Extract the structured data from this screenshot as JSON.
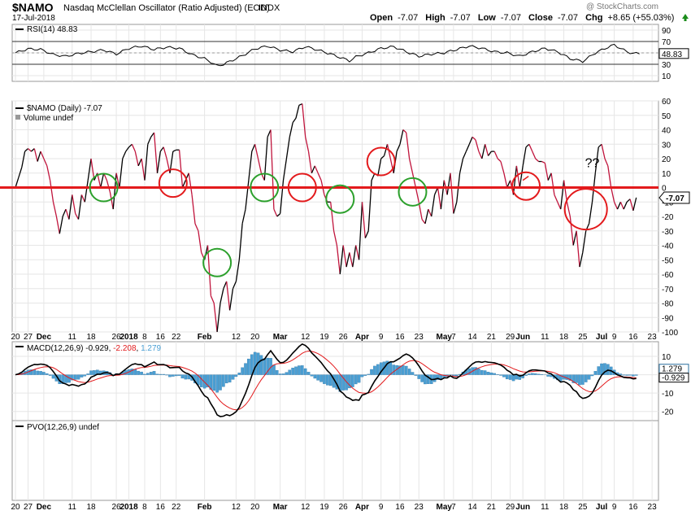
{
  "header": {
    "symbol": "$NAMO",
    "name": "Nasdaq McClellan Oscillator (Ratio Adjusted) (EOD)",
    "exchange": "INDX",
    "watermark": "@ StockCharts.com",
    "date": "17-Jul-2018",
    "open_label": "Open",
    "open_value": "-7.07",
    "high_label": "High",
    "high_value": "-7.07",
    "low_label": "Low",
    "low_value": "-7.07",
    "close_label": "Close",
    "close_value": "-7.07",
    "chg_label": "Chg",
    "chg_value": "+8.65 (+55.03%)",
    "chg_arrow": "up-arrow-icon"
  },
  "colors": {
    "main_line": "#000000",
    "negative_line": "#c0143c",
    "zero_line": "#e31a1c",
    "circle_green": "#2ca02c",
    "circle_red": "#e31a1c",
    "hist": "#4a9fd4",
    "macd_signal": "#e31a1c"
  },
  "x_labels": [
    {
      "i": 0,
      "t": "20"
    },
    {
      "i": 4,
      "t": "27"
    },
    {
      "i": 9,
      "t": "Dec",
      "b": true
    },
    {
      "i": 18,
      "t": "11"
    },
    {
      "i": 24,
      "t": "18"
    },
    {
      "i": 32,
      "t": "26"
    },
    {
      "i": 36,
      "t": "2018",
      "b": true
    },
    {
      "i": 41,
      "t": "8"
    },
    {
      "i": 46,
      "t": "16"
    },
    {
      "i": 51,
      "t": "22"
    },
    {
      "i": 60,
      "t": "Feb",
      "b": true
    },
    {
      "i": 70,
      "t": "12"
    },
    {
      "i": 76,
      "t": "20"
    },
    {
      "i": 84,
      "t": "Mar",
      "b": true
    },
    {
      "i": 92,
      "t": "12"
    },
    {
      "i": 98,
      "t": "19"
    },
    {
      "i": 104,
      "t": "26"
    },
    {
      "i": 110,
      "t": "Apr",
      "b": true
    },
    {
      "i": 116,
      "t": "9"
    },
    {
      "i": 122,
      "t": "16"
    },
    {
      "i": 128,
      "t": "23"
    },
    {
      "i": 136,
      "t": "May",
      "b": true
    },
    {
      "i": 139,
      "t": "7"
    },
    {
      "i": 145,
      "t": "14"
    },
    {
      "i": 151,
      "t": "21"
    },
    {
      "i": 157,
      "t": "29"
    },
    {
      "i": 161,
      "t": "Jun",
      "b": true
    },
    {
      "i": 168,
      "t": "11"
    },
    {
      "i": 174,
      "t": "18"
    },
    {
      "i": 180,
      "t": "25"
    },
    {
      "i": 186,
      "t": "Jul",
      "b": true
    },
    {
      "i": 190,
      "t": "9"
    },
    {
      "i": 196,
      "t": "16"
    },
    {
      "i": 202,
      "t": "23"
    }
  ],
  "rsi": {
    "label": "RSI(14) 48.83",
    "current_tag": "48.83",
    "ticks": [
      "90",
      "70",
      "50",
      "30",
      "10"
    ],
    "tick_values": [
      90,
      70,
      50,
      30,
      10
    ],
    "overbought": 70,
    "oversold": 30,
    "anchors": [
      [
        0,
        50
      ],
      [
        4,
        57
      ],
      [
        8,
        56
      ],
      [
        12,
        47
      ],
      [
        16,
        44
      ],
      [
        20,
        49
      ],
      [
        24,
        52
      ],
      [
        28,
        55
      ],
      [
        32,
        48
      ],
      [
        36,
        58
      ],
      [
        40,
        62
      ],
      [
        44,
        56
      ],
      [
        48,
        60
      ],
      [
        52,
        58
      ],
      [
        56,
        47
      ],
      [
        60,
        40
      ],
      [
        62,
        34
      ],
      [
        64,
        27
      ],
      [
        66,
        30
      ],
      [
        68,
        35
      ],
      [
        72,
        45
      ],
      [
        76,
        57
      ],
      [
        80,
        62
      ],
      [
        84,
        55
      ],
      [
        88,
        52
      ],
      [
        92,
        61
      ],
      [
        96,
        55
      ],
      [
        100,
        48
      ],
      [
        104,
        40
      ],
      [
        106,
        36
      ],
      [
        108,
        43
      ],
      [
        112,
        50
      ],
      [
        116,
        58
      ],
      [
        120,
        61
      ],
      [
        124,
        52
      ],
      [
        128,
        44
      ],
      [
        132,
        48
      ],
      [
        136,
        50
      ],
      [
        140,
        56
      ],
      [
        144,
        62
      ],
      [
        148,
        58
      ],
      [
        152,
        52
      ],
      [
        156,
        50
      ],
      [
        160,
        44
      ],
      [
        164,
        52
      ],
      [
        168,
        58
      ],
      [
        172,
        52
      ],
      [
        176,
        40
      ],
      [
        180,
        35
      ],
      [
        184,
        50
      ],
      [
        188,
        60
      ],
      [
        190,
        64
      ],
      [
        192,
        58
      ],
      [
        194,
        52
      ],
      [
        196,
        49
      ],
      [
        198,
        49
      ]
    ]
  },
  "chart_data": {
    "type": "line",
    "title": "$NAMO (Daily) -7.07",
    "volume_label": "Volume undef",
    "current_tag": "-7.07",
    "ylim": [
      -100,
      60
    ],
    "y_ticks": [
      60,
      50,
      40,
      30,
      20,
      10,
      0,
      -10,
      -20,
      -30,
      -40,
      -50,
      -60,
      -70,
      -80,
      -90,
      -100
    ],
    "n_points": 204,
    "x_label_note": "trading-day index 0=Nov 20 2017, 197=Jul 17 2018",
    "anchors": [
      [
        0,
        0
      ],
      [
        2,
        14
      ],
      [
        3,
        25
      ],
      [
        4,
        27
      ],
      [
        5,
        25
      ],
      [
        6,
        27
      ],
      [
        7,
        18
      ],
      [
        8,
        25
      ],
      [
        9,
        20
      ],
      [
        10,
        15
      ],
      [
        11,
        5
      ],
      [
        12,
        -10
      ],
      [
        13,
        -20
      ],
      [
        14,
        -32
      ],
      [
        15,
        -20
      ],
      [
        16,
        -15
      ],
      [
        17,
        -22
      ],
      [
        18,
        -5
      ],
      [
        19,
        -18
      ],
      [
        20,
        -22
      ],
      [
        21,
        -5
      ],
      [
        22,
        -10
      ],
      [
        23,
        5
      ],
      [
        24,
        20
      ],
      [
        25,
        5
      ],
      [
        26,
        10
      ],
      [
        27,
        0
      ],
      [
        28,
        10
      ],
      [
        29,
        5
      ],
      [
        30,
        -3
      ],
      [
        31,
        -15
      ],
      [
        32,
        10
      ],
      [
        33,
        0
      ],
      [
        34,
        20
      ],
      [
        35,
        25
      ],
      [
        36,
        28
      ],
      [
        37,
        30
      ],
      [
        38,
        25
      ],
      [
        39,
        15
      ],
      [
        40,
        20
      ],
      [
        41,
        5
      ],
      [
        42,
        30
      ],
      [
        43,
        35
      ],
      [
        44,
        38
      ],
      [
        45,
        10
      ],
      [
        46,
        25
      ],
      [
        47,
        28
      ],
      [
        48,
        20
      ],
      [
        49,
        10
      ],
      [
        50,
        25
      ],
      [
        51,
        26
      ],
      [
        52,
        26
      ],
      [
        53,
        0
      ],
      [
        54,
        5
      ],
      [
        55,
        10
      ],
      [
        56,
        -5
      ],
      [
        57,
        -25
      ],
      [
        58,
        -30
      ],
      [
        59,
        -45
      ],
      [
        60,
        -50
      ],
      [
        61,
        -40
      ],
      [
        62,
        -75
      ],
      [
        63,
        -80
      ],
      [
        64,
        -100
      ],
      [
        65,
        -80
      ],
      [
        66,
        -70
      ],
      [
        67,
        -65
      ],
      [
        68,
        -85
      ],
      [
        69,
        -70
      ],
      [
        70,
        -65
      ],
      [
        71,
        -50
      ],
      [
        72,
        -25
      ],
      [
        73,
        -15
      ],
      [
        74,
        5
      ],
      [
        75,
        25
      ],
      [
        76,
        30
      ],
      [
        77,
        20
      ],
      [
        78,
        10
      ],
      [
        79,
        5
      ],
      [
        80,
        35
      ],
      [
        81,
        40
      ],
      [
        82,
        -15
      ],
      [
        83,
        -20
      ],
      [
        84,
        -18
      ],
      [
        85,
        5
      ],
      [
        86,
        20
      ],
      [
        87,
        35
      ],
      [
        88,
        45
      ],
      [
        89,
        48
      ],
      [
        90,
        57
      ],
      [
        91,
        58
      ],
      [
        92,
        35
      ],
      [
        93,
        25
      ],
      [
        94,
        10
      ],
      [
        95,
        15
      ],
      [
        96,
        10
      ],
      [
        97,
        5
      ],
      [
        98,
        -5
      ],
      [
        99,
        -10
      ],
      [
        100,
        -10
      ],
      [
        101,
        -30
      ],
      [
        102,
        -40
      ],
      [
        103,
        -60
      ],
      [
        104,
        -40
      ],
      [
        105,
        -55
      ],
      [
        106,
        -45
      ],
      [
        107,
        -55
      ],
      [
        108,
        -40
      ],
      [
        109,
        -50
      ],
      [
        110,
        -10
      ],
      [
        111,
        -35
      ],
      [
        112,
        -30
      ],
      [
        113,
        5
      ],
      [
        114,
        10
      ],
      [
        115,
        8
      ],
      [
        116,
        20
      ],
      [
        117,
        22
      ],
      [
        118,
        30
      ],
      [
        119,
        20
      ],
      [
        120,
        10
      ],
      [
        121,
        25
      ],
      [
        122,
        30
      ],
      [
        123,
        40
      ],
      [
        124,
        38
      ],
      [
        125,
        20
      ],
      [
        126,
        10
      ],
      [
        127,
        0
      ],
      [
        128,
        -10
      ],
      [
        129,
        -22
      ],
      [
        130,
        -25
      ],
      [
        131,
        -15
      ],
      [
        132,
        -20
      ],
      [
        133,
        -5
      ],
      [
        134,
        0
      ],
      [
        135,
        -15
      ],
      [
        136,
        5
      ],
      [
        137,
        -5
      ],
      [
        138,
        10
      ],
      [
        139,
        -18
      ],
      [
        140,
        -10
      ],
      [
        141,
        10
      ],
      [
        142,
        20
      ],
      [
        143,
        25
      ],
      [
        144,
        30
      ],
      [
        145,
        35
      ],
      [
        146,
        33
      ],
      [
        147,
        25
      ],
      [
        148,
        20
      ],
      [
        149,
        30
      ],
      [
        150,
        22
      ],
      [
        151,
        25
      ],
      [
        152,
        25
      ],
      [
        153,
        20
      ],
      [
        154,
        18
      ],
      [
        155,
        10
      ],
      [
        156,
        0
      ],
      [
        157,
        5
      ],
      [
        158,
        -5
      ],
      [
        159,
        15
      ],
      [
        160,
        0
      ],
      [
        161,
        15
      ],
      [
        162,
        28
      ],
      [
        163,
        30
      ],
      [
        164,
        25
      ],
      [
        165,
        20
      ],
      [
        166,
        18
      ],
      [
        167,
        18
      ],
      [
        168,
        17
      ],
      [
        169,
        5
      ],
      [
        170,
        10
      ],
      [
        171,
        -5
      ],
      [
        172,
        -10
      ],
      [
        173,
        -15
      ],
      [
        174,
        5
      ],
      [
        175,
        -10
      ],
      [
        176,
        -20
      ],
      [
        177,
        -40
      ],
      [
        178,
        -30
      ],
      [
        179,
        -55
      ],
      [
        180,
        -45
      ],
      [
        181,
        -30
      ],
      [
        182,
        -25
      ],
      [
        183,
        -10
      ],
      [
        184,
        10
      ],
      [
        185,
        28
      ],
      [
        186,
        30
      ],
      [
        187,
        20
      ],
      [
        188,
        15
      ],
      [
        189,
        0
      ],
      [
        190,
        -10
      ],
      [
        191,
        -15
      ],
      [
        192,
        -10
      ],
      [
        193,
        -15
      ],
      [
        194,
        -10
      ],
      [
        195,
        -8
      ],
      [
        196,
        -16
      ],
      [
        197,
        -7
      ]
    ],
    "annotations": {
      "question_marks": "??",
      "circles": [
        {
          "i": 28,
          "v": 0,
          "color": "green"
        },
        {
          "i": 50,
          "v": 3,
          "color": "red"
        },
        {
          "i": 64,
          "v": -52,
          "color": "green"
        },
        {
          "i": 79,
          "v": 0,
          "color": "green"
        },
        {
          "i": 91,
          "v": 0,
          "color": "red"
        },
        {
          "i": 103,
          "v": -8,
          "color": "green"
        },
        {
          "i": 116,
          "v": 18,
          "color": "red"
        },
        {
          "i": 126,
          "v": -3,
          "color": "green"
        },
        {
          "i": 162,
          "v": 1,
          "color": "red"
        },
        {
          "i": 181,
          "v": -15,
          "color": "red",
          "big": true
        }
      ]
    },
    "macd": {
      "label": "MACD(12,26,9) -0.929, -2.208, 1.279",
      "label_parts": [
        "MACD(12,26,9) -0.929, ",
        "-2.208",
        ", ",
        "1.279"
      ],
      "tag_hist": "1.279",
      "tag_macd": "-0.929",
      "ticks": [
        "10",
        "0",
        "-10",
        "-20"
      ],
      "tick_values": [
        10,
        0,
        -10,
        -20
      ],
      "ylim": [
        -25,
        18
      ]
    },
    "pvo": {
      "label": "PVO(12,26,9) undef"
    }
  }
}
